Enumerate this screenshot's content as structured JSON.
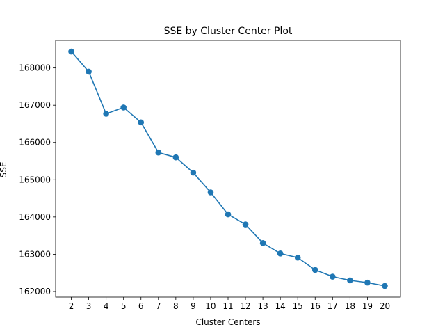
{
  "chart_data": {
    "type": "line",
    "title": "SSE by Cluster Center Plot",
    "xlabel": "Cluster Centers",
    "ylabel": "SSE",
    "x": [
      2,
      3,
      4,
      5,
      6,
      7,
      8,
      9,
      10,
      11,
      12,
      13,
      14,
      15,
      16,
      17,
      18,
      19,
      20
    ],
    "series": [
      {
        "values": [
          168440,
          167900,
          166770,
          166940,
          166540,
          165730,
          165600,
          165190,
          164660,
          164070,
          163800,
          163300,
          163020,
          162910,
          162580,
          162400,
          162300,
          162240,
          162150
        ]
      }
    ],
    "xlim": [
      1.1,
      20.9
    ],
    "ylim": [
      161850,
      168740
    ],
    "yticks": [
      162000,
      163000,
      164000,
      165000,
      166000,
      167000,
      168000
    ],
    "xticks": [
      2,
      3,
      4,
      5,
      6,
      7,
      8,
      9,
      10,
      11,
      12,
      13,
      14,
      15,
      16,
      17,
      18,
      19,
      20
    ],
    "grid": false,
    "marker": "circle",
    "color": "#1f77b4"
  }
}
